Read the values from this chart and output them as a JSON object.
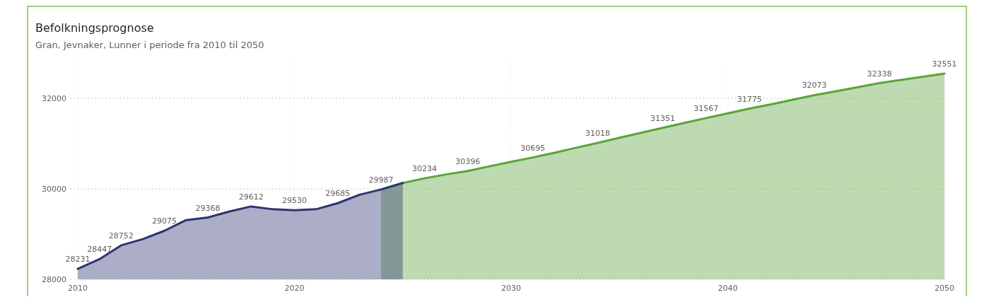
{
  "chart_data": {
    "type": "area",
    "title": "Befolkningsprognose",
    "subtitle": "Gran, Jevnaker, Lunner i periode fra 2010 til 2050",
    "xlim": [
      2010,
      2050
    ],
    "xticks": [
      2010,
      2020,
      2030,
      2040,
      2050
    ],
    "ylim": [
      28000,
      32800
    ],
    "yticks": [
      28000,
      30000,
      32000
    ],
    "grid": true,
    "series": [
      {
        "color": "#5aa33a",
        "x": [
          2024,
          2025,
          2026,
          2027,
          2028,
          2029,
          2030,
          2031,
          2032,
          2033,
          2034,
          2035,
          2036,
          2037,
          2038,
          2039,
          2040,
          2041,
          2042,
          2043,
          2044,
          2045,
          2046,
          2047,
          2048,
          2049,
          2050
        ],
        "values": [
          29987,
          30130,
          30234,
          30320,
          30396,
          30500,
          30600,
          30695,
          30800,
          30910,
          31018,
          31130,
          31240,
          31351,
          31460,
          31567,
          31670,
          31775,
          31870,
          31970,
          32073,
          32160,
          32250,
          32338,
          32410,
          32480,
          32551
        ],
        "value_labels": [
          null,
          null,
          "30234",
          null,
          "30396",
          null,
          null,
          "30695",
          null,
          null,
          "31018",
          null,
          null,
          "31351",
          null,
          "31567",
          null,
          "31775",
          null,
          null,
          "32073",
          null,
          null,
          "32338",
          null,
          null,
          "32551"
        ]
      },
      {
        "color": "#2e3470",
        "x": [
          2010,
          2011,
          2012,
          2013,
          2014,
          2015,
          2016,
          2017,
          2018,
          2019,
          2020,
          2021,
          2022,
          2023,
          2024,
          2025
        ],
        "values": [
          28231,
          28447,
          28752,
          28890,
          29075,
          29310,
          29368,
          29500,
          29612,
          29550,
          29530,
          29550,
          29685,
          29870,
          29987,
          30130
        ],
        "value_labels": [
          "28231",
          "28447",
          "28752",
          null,
          "29075",
          null,
          "29368",
          null,
          "29612",
          null,
          "29530",
          null,
          "29685",
          null,
          "29987",
          null
        ]
      }
    ]
  }
}
